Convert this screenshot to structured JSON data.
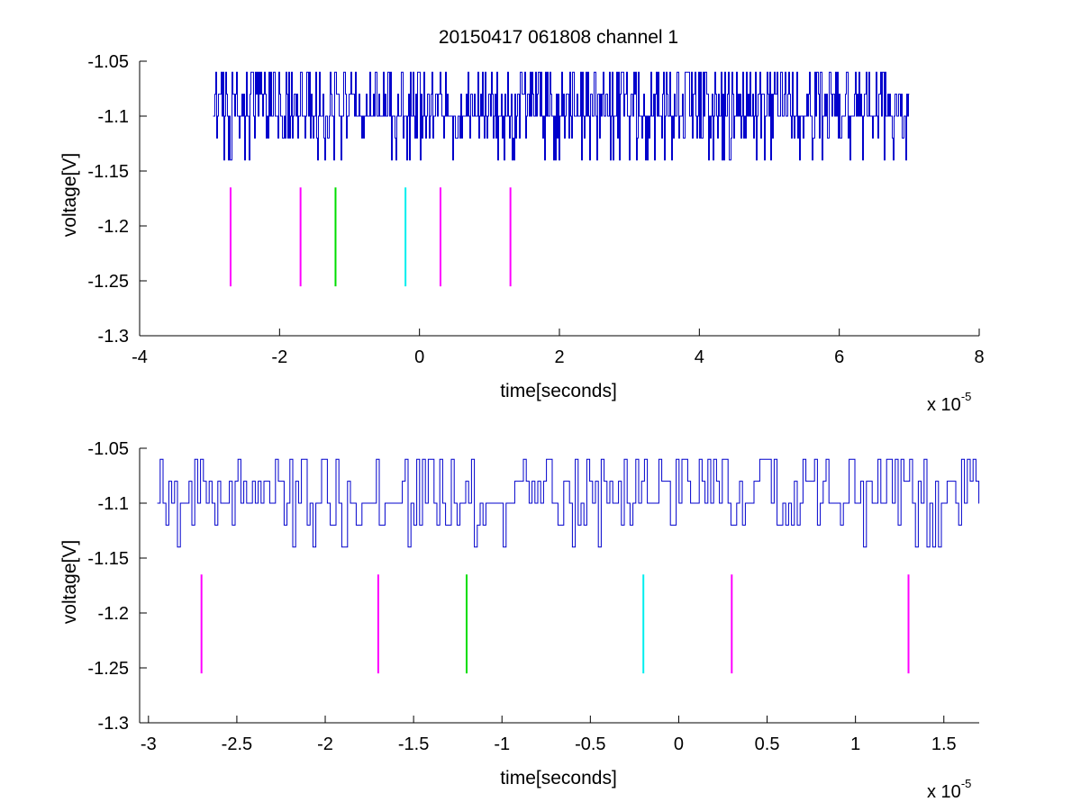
{
  "figure": {
    "title": "20150417 061808 channel 1",
    "background": "#ffffff"
  },
  "chart_data": [
    {
      "type": "line",
      "title": "20150417 061808 channel 1",
      "xlabel": "time[seconds]",
      "ylabel": "voltage[V]",
      "x_exponent_base": "x 10",
      "x_exponent_power": "-5",
      "xlim": [
        -4,
        8
      ],
      "ylim": [
        -1.3,
        -1.05
      ],
      "xticks": [
        -4,
        -2,
        0,
        2,
        4,
        6,
        8
      ],
      "xtick_labels": [
        "-4",
        "-2",
        "0",
        "2",
        "4",
        "6",
        "8"
      ],
      "yticks": [
        -1.05,
        -1.1,
        -1.15,
        -1.2,
        -1.25,
        -1.3
      ],
      "ytick_labels": [
        "-1.05",
        "-1.1",
        "-1.15",
        "-1.2",
        "-1.25",
        "-1.3"
      ],
      "grid": false,
      "signal": {
        "color": "#0000cc",
        "x_start": -2.95,
        "x_end": 7.0,
        "levels": [
          -1.06,
          -1.08,
          -1.1,
          -1.12,
          -1.14
        ],
        "baseline": -1.1
      },
      "markers": [
        {
          "x": -2.7,
          "color": "#ff00ff",
          "y_range": [
            -1.255,
            -1.165
          ]
        },
        {
          "x": -1.7,
          "color": "#ff00ff",
          "y_range": [
            -1.255,
            -1.165
          ]
        },
        {
          "x": -1.2,
          "color": "#00dd00",
          "y_range": [
            -1.255,
            -1.165
          ]
        },
        {
          "x": -0.2,
          "color": "#00eeee",
          "y_range": [
            -1.255,
            -1.165
          ]
        },
        {
          "x": 0.3,
          "color": "#ff00ff",
          "y_range": [
            -1.255,
            -1.165
          ]
        },
        {
          "x": 1.3,
          "color": "#ff00ff",
          "y_range": [
            -1.255,
            -1.165
          ]
        }
      ]
    },
    {
      "type": "line",
      "title": "",
      "xlabel": "time[seconds]",
      "ylabel": "voltage[V]",
      "x_exponent_base": "x 10",
      "x_exponent_power": "-5",
      "xlim": [
        -3.05,
        1.7
      ],
      "ylim": [
        -1.3,
        -1.05
      ],
      "xticks": [
        -3,
        -2.5,
        -2,
        -1.5,
        -1,
        -0.5,
        0,
        0.5,
        1,
        1.5
      ],
      "xtick_labels": [
        "-3",
        "-2.5",
        "-2",
        "-1.5",
        "-1",
        "-0.5",
        "0",
        "0.5",
        "1",
        "1.5"
      ],
      "yticks": [
        -1.05,
        -1.1,
        -1.15,
        -1.2,
        -1.25,
        -1.3
      ],
      "ytick_labels": [
        "-1.05",
        "-1.1",
        "-1.15",
        "-1.2",
        "-1.25",
        "-1.3"
      ],
      "grid": false,
      "signal": {
        "color": "#0000cc",
        "x_start": -2.95,
        "x_end": 1.7,
        "levels": [
          -1.06,
          -1.08,
          -1.1,
          -1.12,
          -1.14
        ],
        "baseline": -1.1
      },
      "markers": [
        {
          "x": -2.7,
          "color": "#ff00ff",
          "y_range": [
            -1.255,
            -1.165
          ]
        },
        {
          "x": -1.7,
          "color": "#ff00ff",
          "y_range": [
            -1.255,
            -1.165
          ]
        },
        {
          "x": -1.2,
          "color": "#00dd00",
          "y_range": [
            -1.255,
            -1.165
          ]
        },
        {
          "x": -0.2,
          "color": "#00eeee",
          "y_range": [
            -1.255,
            -1.165
          ]
        },
        {
          "x": 0.3,
          "color": "#ff00ff",
          "y_range": [
            -1.255,
            -1.165
          ]
        },
        {
          "x": 1.3,
          "color": "#ff00ff",
          "y_range": [
            -1.255,
            -1.165
          ]
        }
      ]
    }
  ]
}
